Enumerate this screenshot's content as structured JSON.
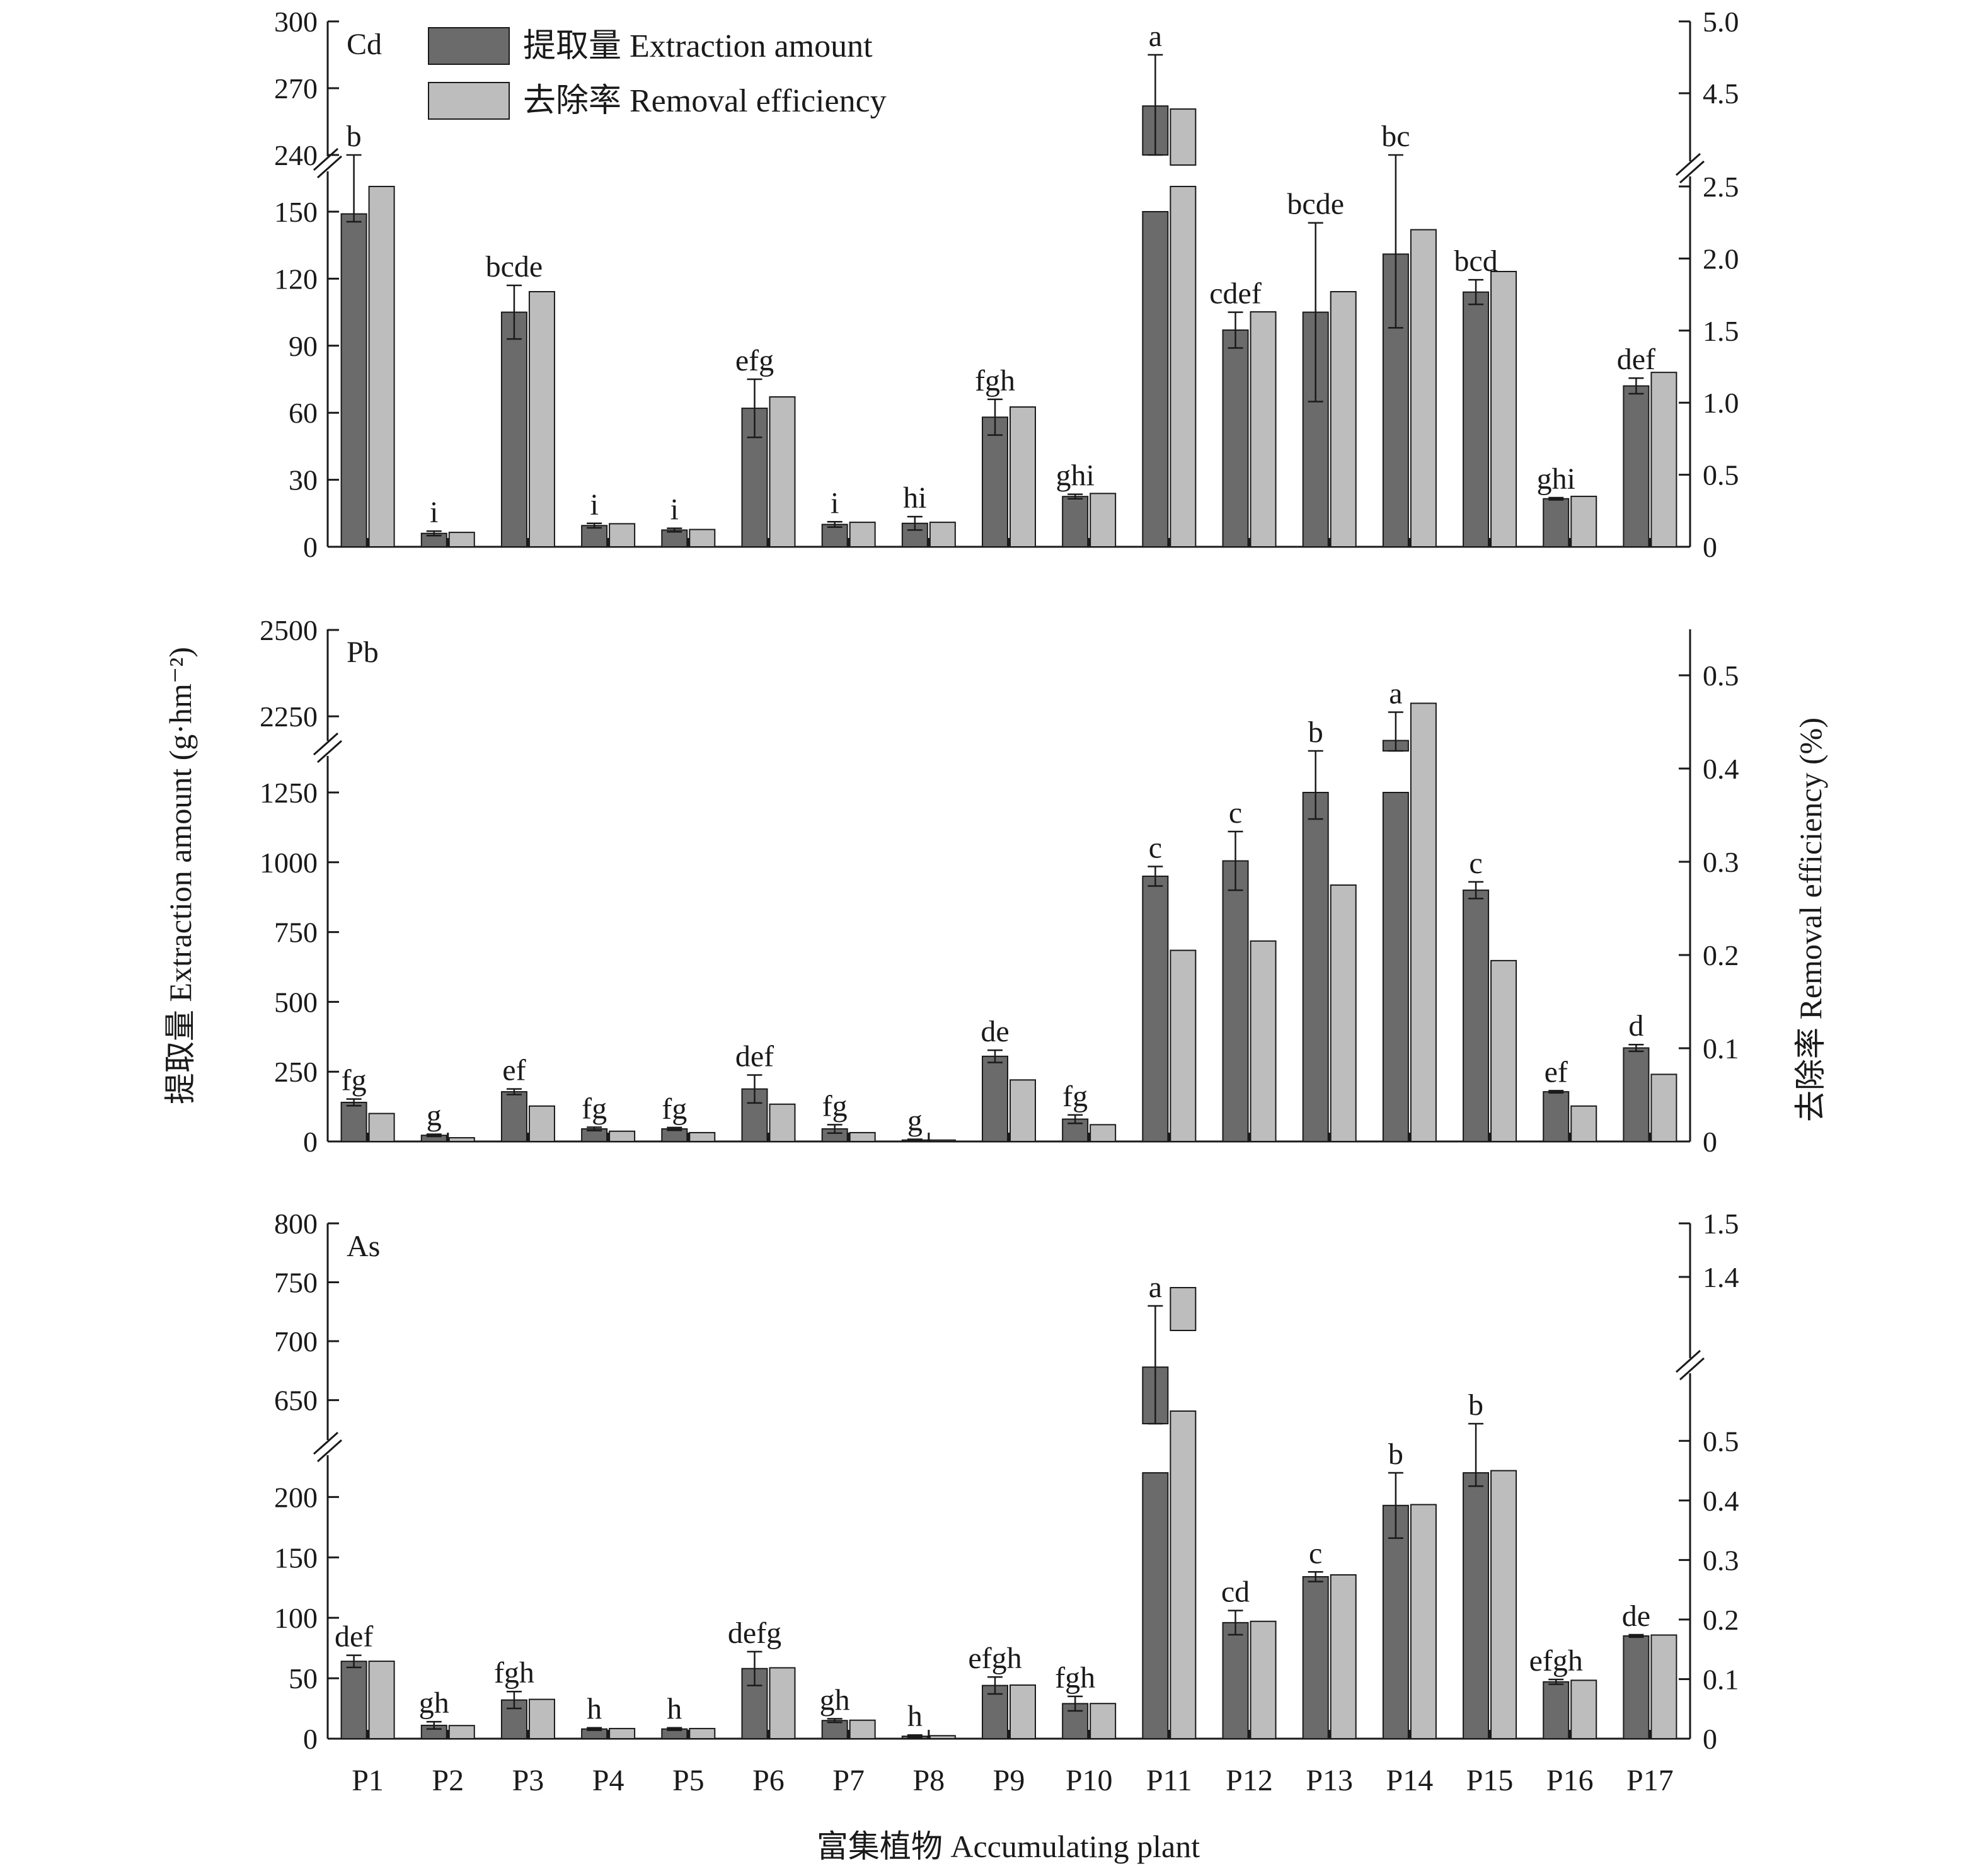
{
  "chart_data": {
    "type": "bar",
    "categories": [
      "P1",
      "P2",
      "P3",
      "P4",
      "P5",
      "P6",
      "P7",
      "P8",
      "P9",
      "P10",
      "P11",
      "P12",
      "P13",
      "P14",
      "P15",
      "P16",
      "P17"
    ],
    "xlabel": "富集植物 Accumulating plant",
    "ylabel": "提取量 Extraction amount (g·hm⁻²)",
    "y2label": "去除率 Removal efficiency (%)",
    "legend": {
      "position": "top-left",
      "entries": [
        {
          "label": "提取量 Extraction amount",
          "color": "#6b6b6b"
        },
        {
          "label": "去除率 Removal efficiency",
          "color": "#bdbdbd"
        }
      ]
    },
    "colors": {
      "extraction": "#6b6b6b",
      "removal": "#bdbdbd",
      "axis": "#1a1a1a"
    },
    "panels": [
      {
        "element": "Cd",
        "left_axis": {
          "lower": {
            "min": 0,
            "max": 150,
            "ticks": [
              "0",
              "30",
              "60",
              "90",
              "120",
              "150"
            ]
          },
          "upper": {
            "min": 240,
            "max": 300,
            "ticks": [
              "240",
              "270",
              "300"
            ]
          }
        },
        "right_axis": {
          "lower": {
            "min": 0,
            "max": 2.5,
            "ticks": [
              "0",
              "0.5",
              "1.0",
              "1.5",
              "2.0",
              "2.5"
            ]
          },
          "upper": {
            "min": 4.0,
            "max": 5.0,
            "ticks": [
              "4.5",
              "5.0"
            ]
          }
        },
        "series": [
          {
            "name": "提取量 Extraction amount",
            "values": [
              149,
              6,
              105,
              9.5,
              7.5,
              62,
              10,
              10.5,
              58,
              22.5,
              262,
              97,
              105,
              131,
              114,
              21.5,
              72
            ],
            "errors": [
              3.5,
              1,
              12,
              1,
              0.8,
              13,
              1.2,
              3,
              8,
              1,
              23,
              8,
              40,
              33,
              5.5,
              0.5,
              3.5
            ]
          },
          {
            "name": "去除率 Removal efficiency",
            "values": [
              2.5,
              0.1,
              1.77,
              0.16,
              0.12,
              1.04,
              0.17,
              0.17,
              0.97,
              0.37,
              4.39,
              1.63,
              1.77,
              2.2,
              1.91,
              0.35,
              1.21
            ]
          }
        ],
        "labels": [
          "b",
          "i",
          "bcde",
          "i",
          "i",
          "efg",
          "i",
          "hi",
          "fgh",
          "ghi",
          "a",
          "cdef",
          "bcde",
          "bc",
          "bcd",
          "ghi",
          "def"
        ]
      },
      {
        "element": "Pb",
        "left_axis": {
          "lower": {
            "min": 0,
            "max": 1250,
            "ticks": [
              "0",
              "250",
              "500",
              "750",
              "1000",
              "1250"
            ]
          },
          "upper": {
            "min": 2150,
            "max": 2500,
            "ticks": [
              "2250",
              "2500"
            ]
          }
        },
        "right_axis": {
          "min": 0,
          "max": 0.5,
          "ticks": [
            "0",
            "0.1",
            "0.2",
            "0.3",
            "0.4",
            "0.5"
          ]
        },
        "series": [
          {
            "name": "提取量 Extraction amount",
            "values": [
              140,
              22,
              178,
              45,
              45,
              188,
              45,
              5,
              305,
              80,
              950,
              1005,
              1270,
              2180,
              900,
              178,
              335
            ],
            "errors": [
              12,
              4,
              10,
              6,
              5,
              50,
              15,
              3,
              22,
              15,
              35,
              105,
              115,
              82,
              30,
              4,
              12
            ]
          },
          {
            "name": "去除率 Removal efficiency",
            "values": [
              0.03,
              0.004,
              0.038,
              0.011,
              0.0095,
              0.04,
              0.0095,
              0.0015,
              0.066,
              0.018,
              0.205,
              0.215,
              0.275,
              0.47,
              0.194,
              0.038,
              0.072
            ]
          }
        ],
        "labels": [
          "fg",
          "g",
          "ef",
          "fg",
          "fg",
          "def",
          "fg",
          "g",
          "de",
          "fg",
          "c",
          "c",
          "b",
          "a",
          "c",
          "ef",
          "d"
        ]
      },
      {
        "element": "As",
        "left_axis": {
          "lower": {
            "min": 0,
            "max": 220,
            "ticks": [
              "0",
              "50",
              "100",
              "150",
              "200"
            ]
          },
          "upper": {
            "min": 630,
            "max": 800,
            "ticks": [
              "650",
              "700",
              "750",
              "800"
            ]
          }
        },
        "right_axis": {
          "lower": {
            "min": 0,
            "max": 0.55,
            "ticks": [
              "0",
              "0.1",
              "0.2",
              "0.3",
              "0.4",
              "0.5"
            ]
          },
          "upper": {
            "min": 1.3,
            "max": 1.5,
            "ticks": [
              "1.4",
              "1.5"
            ]
          }
        },
        "series": [
          {
            "name": "提取量 Extraction amount",
            "values": [
              64,
              11,
              32,
              8,
              8,
              58,
              15,
              2,
              44,
              29,
              678,
              96,
              134,
              193,
              220,
              47,
              85
            ],
            "errors": [
              5,
              3,
              7,
              1,
              1,
              14,
              1.5,
              1,
              7,
              6,
              52,
              10,
              4,
              27,
              11,
              2,
              1
            ]
          },
          {
            "name": "去除率 Removal efficiency",
            "values": [
              0.13,
              0.022,
              0.066,
              0.017,
              0.017,
              0.119,
              0.031,
              0.005,
              0.09,
              0.059,
              1.38,
              0.197,
              0.275,
              0.393,
              0.45,
              0.098,
              0.174
            ]
          }
        ],
        "labels": [
          "def",
          "gh",
          "fgh",
          "h",
          "h",
          "defg",
          "gh",
          "h",
          "efgh",
          "fgh",
          "a",
          "cd",
          "c",
          "b",
          "b",
          "efgh",
          "de"
        ]
      }
    ]
  }
}
